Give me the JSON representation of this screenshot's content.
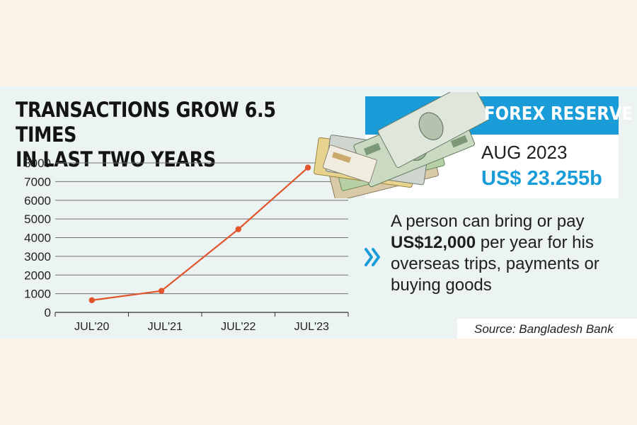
{
  "chart_data": {
    "type": "line",
    "title": "TRANSACTIONS GROW 6.5 TIMES",
    "subtitle": "IN LAST TWO YEARS",
    "xlabel": "",
    "ylabel": "",
    "categories": [
      "JUL'20",
      "JUL'21",
      "JUL'22",
      "JUL'23"
    ],
    "x": [
      0,
      0.95,
      2,
      2.95
    ],
    "values": [
      650,
      1150,
      4450,
      7750
    ],
    "y_ticks": [
      0,
      1000,
      2000,
      3000,
      4000,
      5000,
      6000,
      7000,
      8000
    ],
    "ylim": [
      0,
      8000
    ],
    "grid": true,
    "legend": "none",
    "line_color": "#e2552b",
    "grid_color": "#707070"
  },
  "forex": {
    "title": "FOREX RESERVE",
    "date": "AUG 2023",
    "value": "US$ 23.255b",
    "header_color": "#1a9cd8"
  },
  "note": {
    "text_before": "A person can bring or pay ",
    "text_bold": "US$12,000",
    "text_after": " per year for his overseas trips, payments or buying goods",
    "chevron_color": "#1a9cd8"
  },
  "source": "Source: Bangladesh Bank",
  "colors": {
    "page_bg": "#fdf2e8",
    "panel_bg": "#ebf4f2",
    "accent": "#1a9cd8",
    "line": "#e2552b"
  }
}
